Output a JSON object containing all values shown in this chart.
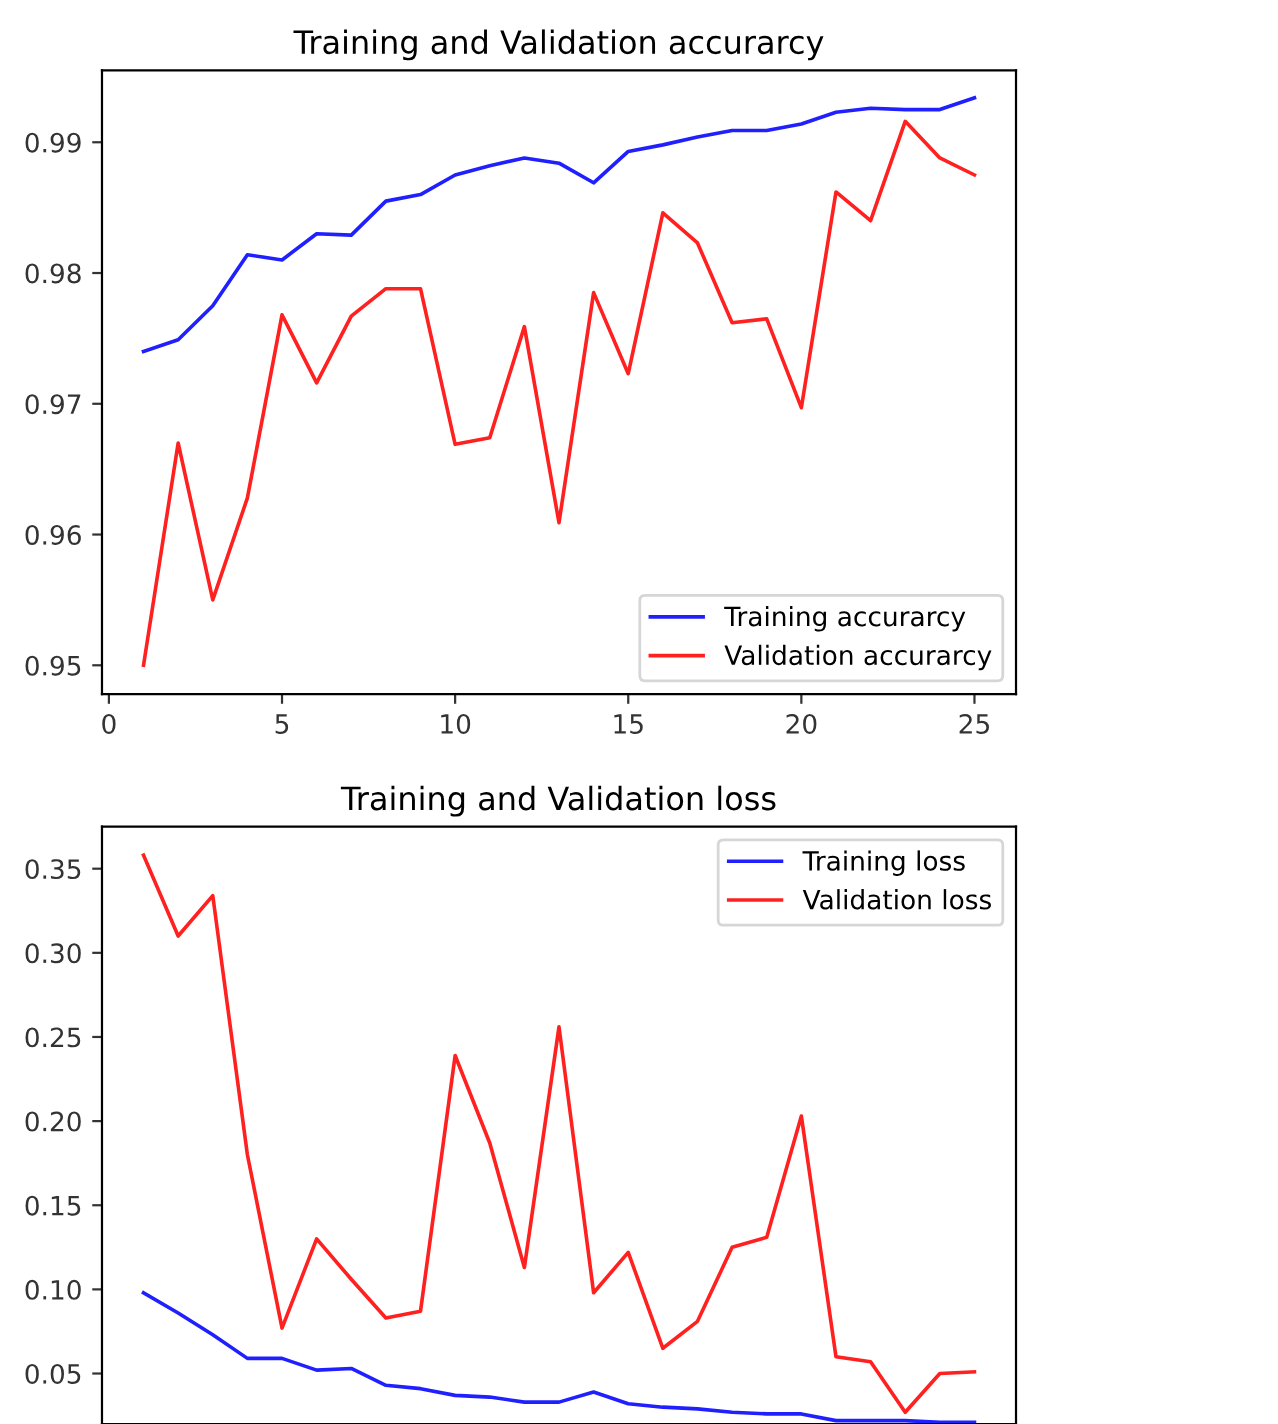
{
  "chart_data": [
    {
      "type": "line",
      "title": "Training and Validation accurarcy",
      "x": [
        1,
        2,
        3,
        4,
        5,
        6,
        7,
        8,
        9,
        10,
        11,
        12,
        13,
        14,
        15,
        16,
        17,
        18,
        19,
        20,
        21,
        22,
        23,
        24,
        25
      ],
      "series": [
        {
          "name": "Training accurarcy",
          "color": "#2020ff",
          "values": [
            0.974,
            0.9749,
            0.9775,
            0.9814,
            0.981,
            0.983,
            0.9829,
            0.9855,
            0.986,
            0.9875,
            0.9882,
            0.9888,
            0.9884,
            0.9869,
            0.9893,
            0.9898,
            0.9904,
            0.9909,
            0.9909,
            0.9914,
            0.9923,
            0.9926,
            0.9925,
            0.9925,
            0.9934
          ]
        },
        {
          "name": "Validation accurarcy",
          "color": "#ff2020",
          "values": [
            0.95,
            0.967,
            0.955,
            0.9628,
            0.9768,
            0.9716,
            0.9767,
            0.9788,
            0.9788,
            0.9669,
            0.9674,
            0.9759,
            0.9609,
            0.9785,
            0.9723,
            0.9846,
            0.9823,
            0.9762,
            0.9765,
            0.9697,
            0.9862,
            0.984,
            0.9916,
            0.9888,
            0.9875
          ]
        }
      ],
      "xlim": [
        -0.2,
        26.2
      ],
      "xticks": [
        0,
        5,
        10,
        15,
        20,
        25
      ],
      "ylim": [
        0.9478,
        0.9955
      ],
      "yticks": [
        0.95,
        0.96,
        0.97,
        0.98,
        0.99
      ],
      "legend": "bottom right"
    },
    {
      "type": "line",
      "title": "Training and Validation loss",
      "x": [
        1,
        2,
        3,
        4,
        5,
        6,
        7,
        8,
        9,
        10,
        11,
        12,
        13,
        14,
        15,
        16,
        17,
        18,
        19,
        20,
        21,
        22,
        23,
        24,
        25
      ],
      "series": [
        {
          "name": "Training loss",
          "color": "#2020ff",
          "values": [
            0.098,
            0.086,
            0.073,
            0.059,
            0.059,
            0.052,
            0.053,
            0.043,
            0.041,
            0.037,
            0.036,
            0.033,
            0.033,
            0.039,
            0.032,
            0.03,
            0.029,
            0.027,
            0.026,
            0.026,
            0.022,
            0.022,
            0.022,
            0.021,
            0.021
          ]
        },
        {
          "name": "Validation loss",
          "color": "#ff2020",
          "values": [
            0.358,
            0.31,
            0.334,
            0.18,
            0.077,
            0.13,
            0.106,
            0.083,
            0.087,
            0.239,
            0.187,
            0.113,
            0.256,
            0.098,
            0.122,
            0.065,
            0.081,
            0.125,
            0.131,
            0.203,
            0.06,
            0.057,
            0.027,
            0.05,
            0.051
          ]
        }
      ],
      "xlim": [
        -0.2,
        26.2
      ],
      "ylim": [
        0.02,
        0.375
      ],
      "yticks": [
        {
          "value": 0.05,
          "label": "0.05"
        },
        {
          "value": 0.1,
          "label": "0.10"
        },
        {
          "value": 0.15,
          "label": "0.15"
        },
        {
          "value": 0.2,
          "label": "0.20"
        },
        {
          "value": 0.25,
          "label": "0.25"
        },
        {
          "value": 0.3,
          "label": "0.30"
        },
        {
          "value": 0.35,
          "label": "0.35"
        }
      ],
      "tick_labels": "y",
      "legend": "top right"
    }
  ]
}
